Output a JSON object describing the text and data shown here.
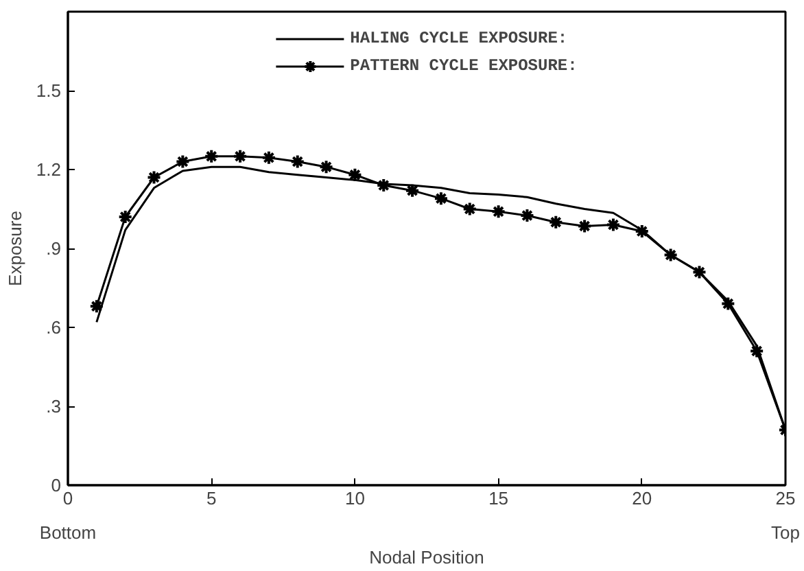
{
  "chart_data": {
    "type": "line",
    "xlabel": "Nodal Position",
    "ylabel": "Exposure",
    "x": [
      1,
      2,
      3,
      4,
      5,
      6,
      7,
      8,
      9,
      10,
      11,
      12,
      13,
      14,
      15,
      16,
      17,
      18,
      19,
      20,
      21,
      22,
      23,
      24,
      25
    ],
    "series": [
      {
        "name": "HALING CYCLE EXPOSURE:",
        "color": "#000000",
        "marker": "none",
        "values": [
          0.62,
          0.97,
          1.13,
          1.195,
          1.21,
          1.21,
          1.19,
          1.18,
          1.17,
          1.16,
          1.145,
          1.14,
          1.13,
          1.11,
          1.105,
          1.095,
          1.07,
          1.05,
          1.035,
          0.97,
          0.875,
          0.81,
          0.7,
          0.53,
          0.21
        ]
      },
      {
        "name": "PATTERN CYCLE EXPOSURE:",
        "color": "#000000",
        "marker": "cross",
        "values": [
          0.68,
          1.02,
          1.17,
          1.23,
          1.25,
          1.25,
          1.245,
          1.23,
          1.21,
          1.18,
          1.14,
          1.12,
          1.09,
          1.05,
          1.04,
          1.025,
          1.0,
          0.985,
          0.99,
          0.965,
          0.875,
          0.81,
          0.69,
          0.51,
          0.21
        ]
      }
    ],
    "xlim": [
      0,
      25
    ],
    "ylim": [
      0,
      1.8
    ],
    "xticks": [
      0,
      5,
      10,
      15,
      20,
      25
    ],
    "yticks": [
      0,
      {
        "value": 0.3,
        "label": ".3"
      },
      {
        "value": 0.6,
        "label": ".6"
      },
      {
        "value": 0.9,
        "label": ".9"
      },
      1.2,
      1.5
    ],
    "grid": false,
    "legend": "top",
    "line_style": "solid",
    "annotations": [
      "Bottom",
      "Top"
    ]
  }
}
